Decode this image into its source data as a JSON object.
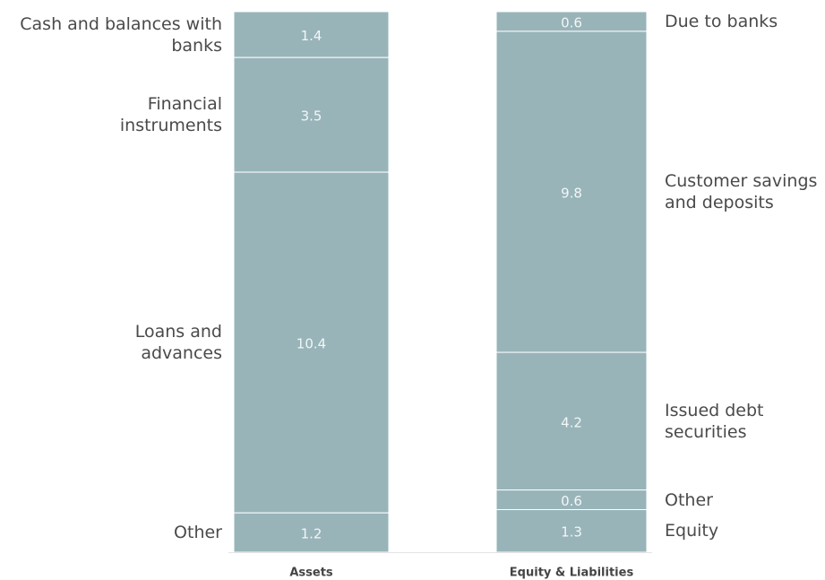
{
  "chart_data": {
    "type": "stacked_bar",
    "color": "#98b4b9",
    "bars": [
      {
        "name": "Assets",
        "segments": [
          {
            "label": "Cash and balances with\nbanks",
            "value": 1.4
          },
          {
            "label": "Financial\ninstruments",
            "value": 3.5
          },
          {
            "label": "Loans and\nadvances",
            "value": 10.4
          },
          {
            "label": "Other",
            "value": 1.2
          }
        ]
      },
      {
        "name": "Equity & Liabilities",
        "segments": [
          {
            "label": "Due to banks",
            "value": 0.6
          },
          {
            "label": "Customer savings\nand deposits",
            "value": 9.8
          },
          {
            "label": "Issued debt\nsecurities",
            "value": 4.2
          },
          {
            "label": "Other",
            "value": 0.6
          },
          {
            "label": "Equity",
            "value": 1.3
          }
        ]
      }
    ]
  }
}
